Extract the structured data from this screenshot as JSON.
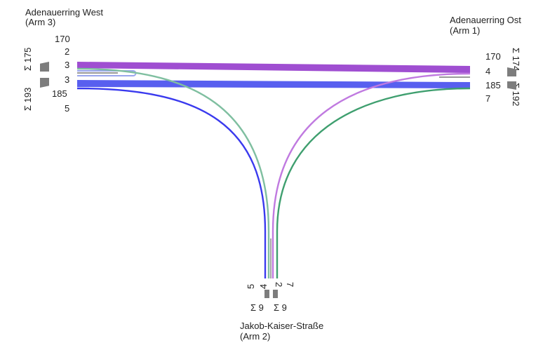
{
  "arms": {
    "west": {
      "name": "Adenauerring West",
      "arm": "(Arm 3)",
      "sum_in": "Σ 175",
      "sum_out": "Σ 193",
      "in_values": [
        "170",
        "2",
        "3"
      ],
      "out_values": [
        "3",
        "185",
        "5"
      ]
    },
    "east": {
      "name": "Adenauerring Ost",
      "arm": "(Arm 1)",
      "sum_in": "Σ 174",
      "sum_out": "Σ 192",
      "in_values": [
        "170",
        "4"
      ],
      "out_values": [
        "185",
        "7"
      ]
    },
    "south": {
      "name": "Jakob-Kaiser-Straße",
      "arm": "(Arm 2)",
      "sum_in": "Σ 9",
      "sum_out": "Σ 9",
      "values": [
        "5",
        "4",
        "2",
        "7"
      ]
    }
  },
  "colors": {
    "west_to_east": "#9a44cf",
    "east_to_west": "#4f56ee",
    "west_to_south": "#7fbfa0",
    "south_to_west": "#3a3aee",
    "east_to_south": "#c07ae0",
    "south_to_east": "#3f9f6f",
    "uturn": "#9aa6ee",
    "arrow": "#7d7d7d"
  }
}
